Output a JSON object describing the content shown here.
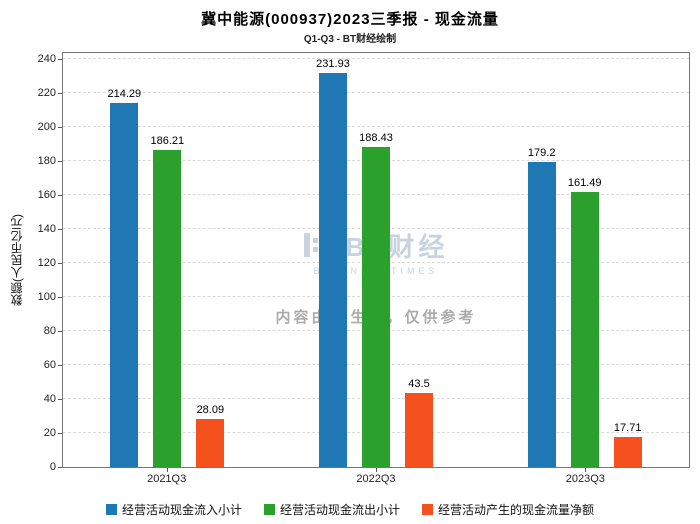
{
  "chart_data": {
    "type": "bar",
    "title": "冀中能源(000937)2023三季报 - 现金流量",
    "subtitle": "Q1-Q3 - BT财经绘制",
    "ylabel": "数额(人民币亿元)",
    "xlabel": "",
    "categories": [
      "2021Q3",
      "2022Q3",
      "2023Q3"
    ],
    "series": [
      {
        "name": "经营活动现金流入小计",
        "color": "#1f77b4",
        "values": [
          214.29,
          231.93,
          179.2
        ]
      },
      {
        "name": "经营活动现金流出小计",
        "color": "#2ca02c",
        "values": [
          186.21,
          188.43,
          161.49
        ]
      },
      {
        "name": "经营活动产生的现金流量净额",
        "color": "#f4511e",
        "values": [
          28.09,
          43.5,
          17.71
        ]
      }
    ],
    "ylim": [
      0,
      240
    ],
    "ytick_step": 20,
    "grid": true,
    "grid_color": "#d9d9d9",
    "legend_position": "bottom"
  },
  "watermark": {
    "logo_text": "BT财经",
    "logo_subtext": "BUSINESSTIMES",
    "disclaimer": "内容由AI生成，仅供参考"
  }
}
